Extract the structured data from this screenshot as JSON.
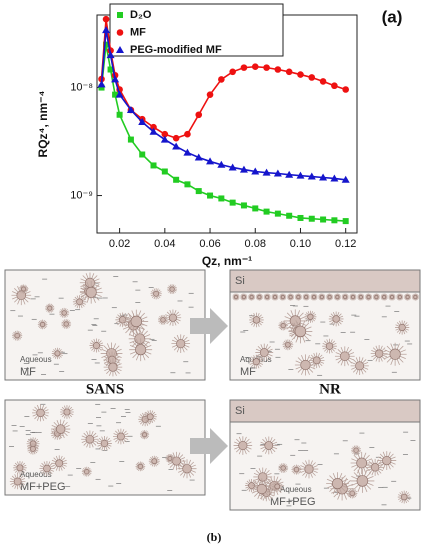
{
  "chart_data": {
    "type": "scatter",
    "title": "(a)",
    "x_label": "Qz, nm⁻¹",
    "y_label": "RQz⁴, nm⁻⁴",
    "x": [
      0.012,
      0.014,
      0.016,
      0.018,
      0.02,
      0.025,
      0.03,
      0.035,
      0.04,
      0.045,
      0.05,
      0.055,
      0.06,
      0.065,
      0.07,
      0.075,
      0.08,
      0.085,
      0.09,
      0.095,
      0.1,
      0.105,
      0.11,
      0.115,
      0.12
    ],
    "series": [
      {
        "name": "D₂O",
        "color": "#22cc22",
        "marker": "square",
        "values": [
          1e-08,
          2.5e-08,
          1.47e-08,
          8.6e-09,
          5.6e-09,
          3.3e-09,
          2.4e-09,
          1.9e-09,
          1.67e-09,
          1.4e-09,
          1.27e-09,
          1.1e-09,
          1e-09,
          9.4e-10,
          8.6e-10,
          8.1e-10,
          7.6e-10,
          7.1e-10,
          6.8e-10,
          6.5e-10,
          6.2e-10,
          6.1e-10,
          6e-10,
          5.9e-10,
          5.8e-10
        ]
      },
      {
        "name": "MF",
        "color": "#ee1111",
        "marker": "circle",
        "values": [
          1.2e-08,
          4.3e-08,
          2.2e-08,
          1.3e-08,
          9.6e-09,
          6.2e-09,
          5.1e-09,
          4.3e-09,
          3.7e-09,
          3.4e-09,
          3.7e-09,
          5.6e-09,
          8.6e-09,
          1.19e-08,
          1.4e-08,
          1.53e-08,
          1.56e-08,
          1.53e-08,
          1.47e-08,
          1.4e-08,
          1.32e-08,
          1.24e-08,
          1.14e-08,
          1.04e-08,
          9.6e-09
        ]
      },
      {
        "name": "PEG-modified MF",
        "color": "#1515cc",
        "marker": "triangle",
        "values": [
          1.07e-08,
          3.4e-08,
          2e-08,
          1.19e-08,
          8.6e-09,
          6.2e-09,
          4.8e-09,
          3.9e-09,
          3.3e-09,
          2.85e-09,
          2.5e-09,
          2.25e-09,
          2.07e-09,
          1.93e-09,
          1.82e-09,
          1.74e-09,
          1.67e-09,
          1.63e-09,
          1.6e-09,
          1.56e-09,
          1.53e-09,
          1.5e-09,
          1.47e-09,
          1.44e-09,
          1.4e-09
        ]
      }
    ],
    "xlim": [
      0.01,
      0.125
    ],
    "xticks": [
      0.02,
      0.04,
      0.06,
      0.08,
      {
        "value": 0.1,
        "label": "0.10"
      },
      0.12
    ],
    "ylim": [
      4.5e-10,
      4.7e-08
    ],
    "y_scale": "log",
    "yticks": [
      {
        "value": 1e-08,
        "label": "10⁻⁸"
      },
      {
        "value": 1e-09,
        "label": "10⁻⁹"
      }
    ],
    "legend": "upper left"
  },
  "diagram": {
    "panels": [
      {
        "solvent": "Aqueous",
        "sample": "MF"
      },
      {
        "substrate": "Si",
        "solvent": "Aqueous",
        "sample": "MF"
      },
      {
        "solvent": "Aqueous",
        "sample": "MF+PEG"
      },
      {
        "substrate": "Si",
        "solvent": "Aqueous",
        "sample": "MF+PEG"
      }
    ],
    "method_labels": [
      "SANS",
      "NR"
    ],
    "caption": "(b)"
  }
}
